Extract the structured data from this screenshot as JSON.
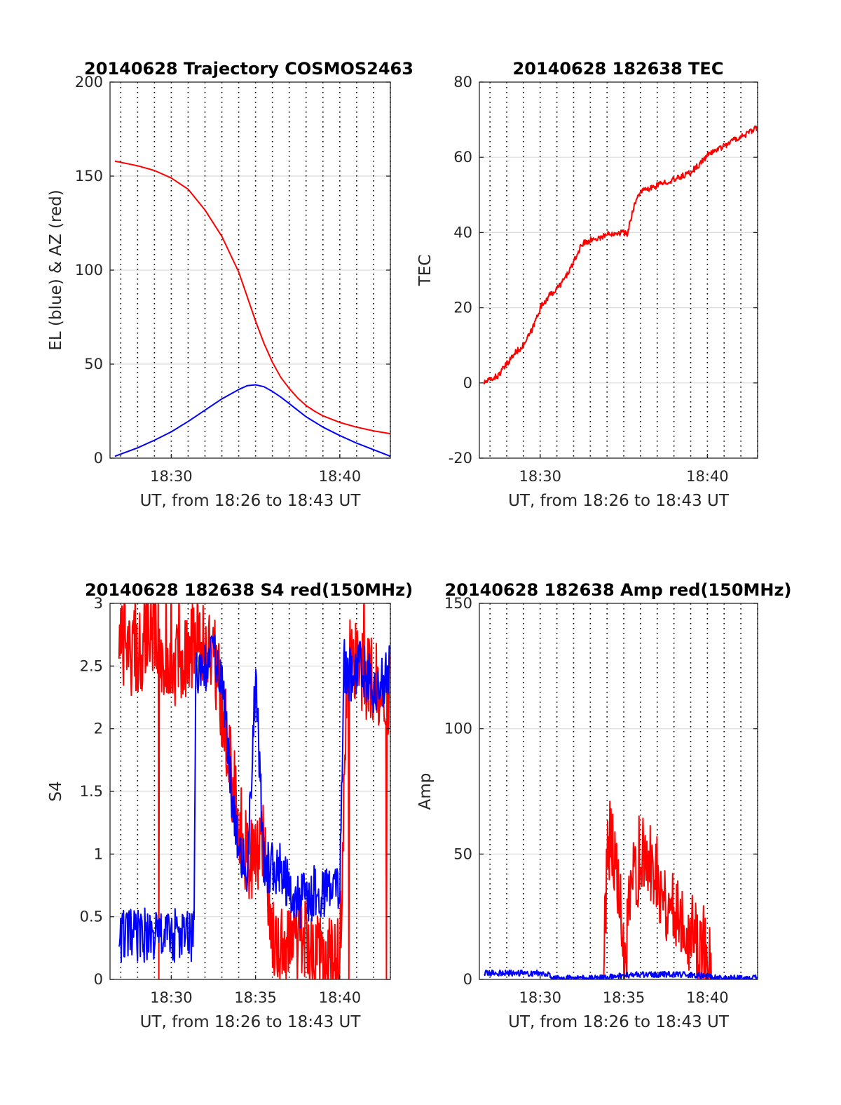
{
  "chart_data": [
    {
      "type": "line",
      "title": "20140628 Trajectory COSMOS2463",
      "xlabel": "UT, from 18:26 to 18:43 UT",
      "ylabel": "EL (blue) & AZ (red)",
      "xlim": [
        18.4394,
        18.7167
      ],
      "ylim": [
        0,
        200
      ],
      "yticks": [
        0,
        50,
        100,
        150,
        200
      ],
      "ytick_labels": [
        "0",
        "50",
        "100",
        "150",
        "200"
      ],
      "xticks": [
        18.5,
        18.6667
      ],
      "xtick_labels": [
        "18:30",
        "18:40"
      ],
      "vgrid_step_minutes": 1,
      "hgrid": true,
      "series": [
        {
          "color": "#ff0000",
          "x": [
            18.4442,
            18.4667,
            18.4833,
            18.5,
            18.5167,
            18.5333,
            18.55,
            18.5667,
            18.575,
            18.5833,
            18.5917,
            18.6,
            18.6083,
            18.6167,
            18.625,
            18.6333,
            18.6417,
            18.65,
            18.6667,
            18.6833,
            18.7,
            18.7167
          ],
          "values": [
            158,
            155.5,
            153,
            149,
            143,
            132,
            118,
            99,
            86,
            73,
            61,
            51,
            43,
            37,
            32,
            28,
            25,
            22.5,
            19,
            16.5,
            14.5,
            13
          ]
        },
        {
          "color": "#0000ff",
          "x": [
            18.4442,
            18.4667,
            18.4833,
            18.5,
            18.5167,
            18.5333,
            18.55,
            18.5667,
            18.575,
            18.5833,
            18.5917,
            18.6,
            18.6083,
            18.6167,
            18.625,
            18.6333,
            18.65,
            18.6667,
            18.6833,
            18.7,
            18.7167
          ],
          "values": [
            1,
            5.5,
            9.5,
            14,
            19.5,
            25.5,
            31.5,
            36.5,
            38.5,
            39,
            38,
            35.5,
            32.5,
            29,
            25.5,
            22,
            16.5,
            12,
            8,
            4.5,
            1
          ]
        }
      ]
    },
    {
      "type": "line",
      "title": "20140628 182638 TEC",
      "xlabel": "UT, from 18:26 to 18:43 UT",
      "ylabel": "TEC",
      "xlim": [
        18.4394,
        18.7167
      ],
      "ylim": [
        -20,
        80
      ],
      "yticks": [
        -20,
        0,
        20,
        40,
        60,
        80
      ],
      "ytick_labels": [
        "-20",
        "0",
        "20",
        "40",
        "60",
        "80"
      ],
      "xticks": [
        18.5,
        18.6667
      ],
      "xtick_labels": [
        "18:30",
        "18:40"
      ],
      "vgrid_step_minutes": 1,
      "hgrid": true,
      "series": [
        {
          "color": "#ff0000",
          "noise": 0.8,
          "x": [
            18.4442,
            18.4583,
            18.4667,
            18.475,
            18.4833,
            18.4917,
            18.5,
            18.5083,
            18.5167,
            18.525,
            18.5333,
            18.5417,
            18.55,
            18.5583,
            18.5667,
            18.575,
            18.5833,
            18.5867,
            18.5933,
            18.6,
            18.6083,
            18.6167,
            18.625,
            18.6333,
            18.65,
            18.6583,
            18.6667,
            18.675,
            18.6833,
            18.6917,
            18.7,
            18.7083,
            18.7167
          ],
          "values": [
            0,
            2,
            5,
            8,
            10,
            14,
            20,
            23,
            25,
            28,
            32,
            37,
            38,
            38.5,
            39.5,
            40,
            40,
            39.5,
            47,
            51,
            51.5,
            52.5,
            53.5,
            54,
            56,
            58,
            60.5,
            62,
            63,
            64.5,
            65.5,
            66.5,
            68
          ]
        }
      ]
    },
    {
      "type": "line",
      "title": "20140628 182638 S4 red(150MHz)",
      "xlabel": "UT, from 18:26 to 18:43 UT",
      "ylabel": "S4",
      "xlim": [
        18.4394,
        18.7167
      ],
      "ylim": [
        0,
        3
      ],
      "yticks": [
        0,
        0.5,
        1,
        1.5,
        2,
        2.5,
        3
      ],
      "ytick_labels": [
        "0",
        "0.5",
        "1",
        "1.5",
        "2",
        "2.5",
        "3"
      ],
      "xticks": [
        18.5,
        18.5833,
        18.6667
      ],
      "xtick_labels": [
        "18:30",
        "18:35",
        "18:40"
      ],
      "vgrid_step_minutes": 1,
      "hgrid": true,
      "series": [
        {
          "color": "#ff0000",
          "noise": 0.35,
          "x": [
            18.4483,
            18.4583,
            18.4667,
            18.475,
            18.4833,
            18.4917,
            18.5,
            18.5083,
            18.5167,
            18.5233,
            18.5333,
            18.5417,
            18.55,
            18.5583,
            18.5667,
            18.575,
            18.5833,
            18.5917,
            18.6,
            18.6083,
            18.6167,
            18.625,
            18.6333,
            18.6417,
            18.65,
            18.6583,
            18.6667,
            18.675,
            18.6833,
            18.6917,
            18.7,
            18.7083,
            18.7167
          ],
          "values": [
            2.7,
            2.6,
            2.6,
            2.7,
            2.8,
            2.6,
            2.5,
            2.5,
            2.6,
            2.7,
            2.7,
            2.6,
            2.2,
            1.7,
            1.3,
            1.0,
            0.95,
            1.2,
            0.3,
            0.28,
            0.25,
            0.35,
            0.3,
            0.2,
            0.15,
            0.15,
            0.15,
            2.7,
            2.5,
            2.4,
            2.4,
            2.3,
            2.3
          ]
        },
        {
          "color": "#0000ff",
          "noise": 0.22,
          "x": [
            18.4483,
            18.4583,
            18.4667,
            18.475,
            18.4833,
            18.4917,
            18.5,
            18.5083,
            18.5167,
            18.5225,
            18.5242,
            18.5333,
            18.5417,
            18.55,
            18.5583,
            18.5667,
            18.575,
            18.5833,
            18.5917,
            18.6,
            18.6083,
            18.6167,
            18.625,
            18.6333,
            18.6417,
            18.65,
            18.6583,
            18.6667,
            18.6708,
            18.6792,
            18.6875,
            18.6958,
            18.7042,
            18.7167
          ],
          "values": [
            0.35,
            0.35,
            0.35,
            0.35,
            0.35,
            0.35,
            0.35,
            0.35,
            0.35,
            0.35,
            2.4,
            2.5,
            2.6,
            2.4,
            1.6,
            1.1,
            0.8,
            2.4,
            0.9,
            0.9,
            0.9,
            0.7,
            0.6,
            0.65,
            0.7,
            0.7,
            0.7,
            0.75,
            2.5,
            2.4,
            2.5,
            2.4,
            2.3,
            2.5
          ]
        }
      ]
    },
    {
      "type": "line",
      "title": "20140628 182638 Amp red(150MHz)",
      "xlabel": "UT, from 18:26 to 18:43 UT",
      "ylabel": "Amp",
      "xlim": [
        18.4394,
        18.7167
      ],
      "ylim": [
        0,
        150
      ],
      "yticks": [
        0,
        50,
        100,
        150
      ],
      "ytick_labels": [
        "0",
        "50",
        "100",
        "150"
      ],
      "xticks": [
        18.5,
        18.5833,
        18.6667
      ],
      "xtick_labels": [
        "18:30",
        "18:35",
        "18:40"
      ],
      "vgrid_step_minutes": 1,
      "hgrid": true,
      "series": [
        {
          "color": "#ff0000",
          "noise": 18,
          "x": [
            18.5633,
            18.5667,
            18.5708,
            18.575,
            18.5792,
            18.5833,
            18.5875,
            18.5917,
            18.5958,
            18.6,
            18.6042,
            18.6083,
            18.6125,
            18.6167,
            18.6208,
            18.625,
            18.6292,
            18.6333,
            18.6375,
            18.6417,
            18.6458,
            18.65,
            18.6542,
            18.6583,
            18.6625,
            18.6667,
            18.6708
          ],
          "values": [
            0,
            55,
            60,
            45,
            30,
            3,
            20,
            35,
            45,
            50,
            45,
            45,
            48,
            42,
            38,
            30,
            30,
            28,
            28,
            25,
            22,
            20,
            18,
            15,
            12,
            10,
            0
          ]
        },
        {
          "color": "#0000ff",
          "noise": 1.2,
          "x": [
            18.4442,
            18.4583,
            18.4667,
            18.475,
            18.4833,
            18.4917,
            18.5,
            18.5083,
            18.5117,
            18.525,
            18.5417,
            18.5583,
            18.575,
            18.5917,
            18.6083,
            18.625,
            18.6417,
            18.6583,
            18.675,
            18.6917,
            18.7083,
            18.7167
          ],
          "values": [
            2.5,
            2.5,
            2.5,
            2.5,
            2.5,
            2.5,
            2.5,
            2.5,
            0.5,
            0.5,
            0.5,
            0.5,
            1.2,
            1.8,
            2,
            2,
            2,
            1.5,
            0.8,
            0.5,
            0.5,
            0.5
          ]
        }
      ]
    }
  ]
}
